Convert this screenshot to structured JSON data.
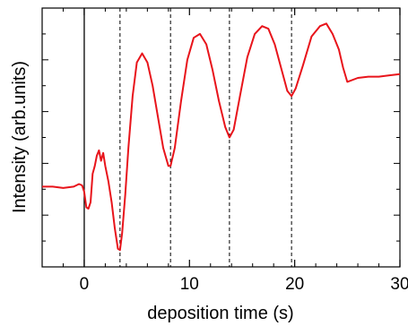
{
  "chart_data": {
    "type": "line",
    "xlabel": "deposition time (s)",
    "ylabel": "Intensity (arb.units)",
    "xlim": [
      -4,
      30
    ],
    "ylim": [
      0,
      10
    ],
    "xticks": [
      0,
      10,
      20,
      30
    ],
    "xtick_labels": [
      "0",
      "10",
      "20",
      "30"
    ],
    "y_tick_labels_shown": false,
    "grid": false,
    "legend": "none",
    "line_color": "#e8141b",
    "markers": {
      "solid": [
        0
      ],
      "dashed": [
        3.4,
        8.2,
        13.8,
        19.7
      ]
    },
    "series": [
      {
        "x": [
          -4,
          -3,
          -2,
          -1,
          -0.5,
          -0.2,
          0,
          0.2,
          0.4,
          0.6,
          0.8,
          1.0,
          1.2,
          1.4,
          1.6,
          1.8,
          2.0,
          2.3,
          2.6,
          2.9,
          3.2,
          3.4,
          3.6,
          3.9,
          4.2,
          4.6,
          5.0,
          5.5,
          6.0,
          6.5,
          7.0,
          7.5,
          8.0,
          8.2,
          8.6,
          9.2,
          9.8,
          10.4,
          11.0,
          11.6,
          12.2,
          12.8,
          13.4,
          13.8,
          14.2,
          14.8,
          15.5,
          16.2,
          16.9,
          17.5,
          18.1,
          18.7,
          19.3,
          19.7,
          20.1,
          20.8,
          21.6,
          22.4,
          23.0,
          23.6,
          24.2,
          24.6,
          25.0,
          26,
          27,
          28,
          29,
          30
        ],
        "y": [
          3.1,
          3.1,
          3.05,
          3.1,
          3.2,
          3.15,
          2.9,
          2.3,
          2.25,
          2.5,
          3.6,
          3.9,
          4.3,
          4.5,
          4.1,
          4.4,
          3.9,
          3.3,
          2.5,
          1.5,
          0.7,
          0.65,
          1.3,
          2.8,
          4.6,
          6.6,
          7.9,
          8.25,
          7.9,
          7.0,
          5.8,
          4.6,
          3.9,
          3.9,
          4.6,
          6.4,
          8.0,
          8.85,
          9.0,
          8.6,
          7.6,
          6.4,
          5.4,
          5.0,
          5.3,
          6.6,
          8.1,
          9.0,
          9.3,
          9.2,
          8.6,
          7.7,
          6.8,
          6.6,
          6.9,
          7.8,
          8.9,
          9.3,
          9.4,
          9.0,
          8.4,
          7.7,
          7.15,
          7.3,
          7.35,
          7.35,
          7.4,
          7.45
        ]
      }
    ]
  }
}
